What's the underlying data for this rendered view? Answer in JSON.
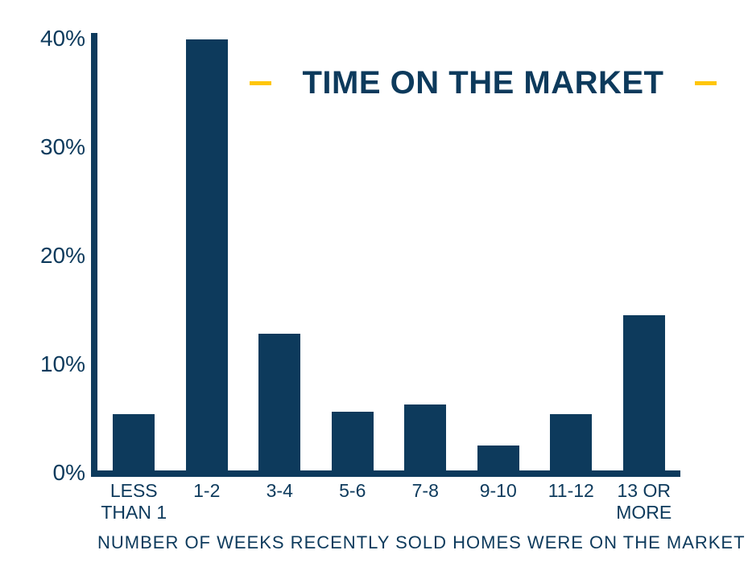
{
  "page": {
    "background": "#ffffff"
  },
  "chart_data": {
    "type": "bar",
    "title": "TIME ON THE MARKET",
    "xlabel": "NUMBER OF WEEKS RECENTLY SOLD HOMES WERE ON THE MARKET",
    "ylabel": "",
    "categories": [
      "LESS\nTHAN 1",
      "1-2",
      "3-4",
      "5-6",
      "7-8",
      "9-10",
      "11-12",
      "13 OR\nMORE"
    ],
    "values": [
      5.4,
      39.9,
      12.8,
      5.6,
      6.3,
      2.5,
      5.4,
      14.5
    ],
    "y_ticks": [
      {
        "label": "40%",
        "value": 40
      },
      {
        "label": "30%",
        "value": 30
      },
      {
        "label": "20%",
        "value": 20
      },
      {
        "label": "10%",
        "value": 10
      },
      {
        "label": "0%",
        "value": 0
      }
    ],
    "ylim": [
      0,
      40
    ],
    "grid": false,
    "legend": "none",
    "bar_color": "#0d3a5c",
    "text_color": "#0d3a5c",
    "accent_color": "#ffc60a"
  }
}
